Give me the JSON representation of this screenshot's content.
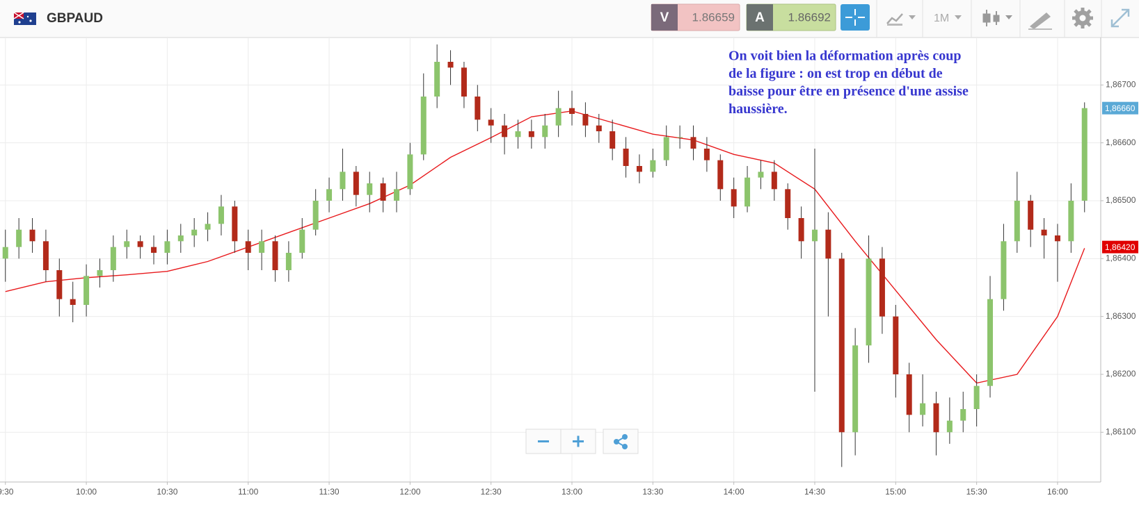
{
  "header": {
    "symbol": "GBPAUD",
    "sell_label": "V",
    "sell_price": "1.86659",
    "buy_label": "A",
    "buy_price": "1.86692",
    "interval": "1M"
  },
  "chart_data": {
    "type": "candlestick",
    "xlim": [
      "9:28",
      "16:16"
    ],
    "xticks": [
      "9:30",
      "10:00",
      "10:30",
      "11:00",
      "11:30",
      "12:00",
      "12:30",
      "13:00",
      "13:30",
      "14:00",
      "14:30",
      "15:00",
      "15:30",
      "16:00"
    ],
    "ylim": [
      1.86014,
      1.86782
    ],
    "yticks": [
      {
        "value": 1.861,
        "label": "1,86100"
      },
      {
        "value": 1.862,
        "label": "1,86200"
      },
      {
        "value": 1.863,
        "label": "1,86300"
      },
      {
        "value": 1.864,
        "label": "1,86400"
      },
      {
        "value": 1.865,
        "label": "1,86500"
      },
      {
        "value": 1.866,
        "label": "1,86600"
      },
      {
        "value": 1.867,
        "label": "1,86700"
      }
    ],
    "grid": true,
    "up_color": "#8cc46c",
    "down_color": "#b22a1a",
    "wick_color": "#333333",
    "x": [
      "9:30",
      "9:35",
      "9:40",
      "9:45",
      "9:50",
      "9:55",
      "10:00",
      "10:05",
      "10:10",
      "10:15",
      "10:20",
      "10:25",
      "10:30",
      "10:35",
      "10:40",
      "10:45",
      "10:50",
      "10:55",
      "11:00",
      "11:05",
      "11:10",
      "11:15",
      "11:20",
      "11:25",
      "11:30",
      "11:35",
      "11:40",
      "11:45",
      "11:50",
      "11:55",
      "12:00",
      "12:05",
      "12:10",
      "12:15",
      "12:20",
      "12:25",
      "12:30",
      "12:35",
      "12:40",
      "12:45",
      "12:50",
      "12:55",
      "13:00",
      "13:05",
      "13:10",
      "13:15",
      "13:20",
      "13:25",
      "13:30",
      "13:35",
      "13:40",
      "13:45",
      "13:50",
      "13:55",
      "14:00",
      "14:05",
      "14:10",
      "14:15",
      "14:20",
      "14:25",
      "14:30",
      "14:35",
      "14:40",
      "14:45",
      "14:50",
      "14:55",
      "15:00",
      "15:05",
      "15:10",
      "15:15",
      "15:20",
      "15:25",
      "15:30",
      "15:35",
      "15:40",
      "15:45",
      "15:50",
      "15:55",
      "16:00",
      "16:05",
      "16:10"
    ],
    "open": [
      1.864,
      1.8642,
      1.8645,
      1.8643,
      1.8638,
      1.8633,
      1.8632,
      1.8637,
      1.8638,
      1.8642,
      1.8643,
      1.8642,
      1.8641,
      1.8643,
      1.8644,
      1.8645,
      1.8646,
      1.8649,
      1.8643,
      1.8641,
      1.8643,
      1.8638,
      1.8641,
      1.8645,
      1.865,
      1.8652,
      1.8655,
      1.8651,
      1.8653,
      1.865,
      1.8652,
      1.8658,
      1.8668,
      1.8674,
      1.8673,
      1.8668,
      1.8664,
      1.8663,
      1.8661,
      1.8662,
      1.8661,
      1.8663,
      1.8666,
      1.8665,
      1.8663,
      1.8662,
      1.8659,
      1.8656,
      1.8655,
      1.8657,
      1.8661,
      1.8661,
      1.8659,
      1.8657,
      1.8652,
      1.8649,
      1.8654,
      1.8655,
      1.8652,
      1.8647,
      1.8643,
      1.8645,
      1.864,
      1.861,
      1.8625,
      1.864,
      1.863,
      1.862,
      1.8613,
      1.8615,
      1.861,
      1.8612,
      1.8614,
      1.8618,
      1.8633,
      1.8643,
      1.865,
      1.8645,
      1.8644,
      1.8643,
      1.865
    ],
    "high": [
      1.8645,
      1.8647,
      1.8647,
      1.8645,
      1.864,
      1.8636,
      1.8639,
      1.864,
      1.8644,
      1.8645,
      1.8644,
      1.8644,
      1.8645,
      1.8646,
      1.8647,
      1.8648,
      1.8651,
      1.865,
      1.8645,
      1.8645,
      1.8644,
      1.8643,
      1.8647,
      1.8652,
      1.8654,
      1.8659,
      1.8656,
      1.8655,
      1.8654,
      1.8655,
      1.866,
      1.8672,
      1.8677,
      1.8676,
      1.8674,
      1.867,
      1.8666,
      1.8665,
      1.8664,
      1.8664,
      1.8665,
      1.8669,
      1.8669,
      1.8667,
      1.8665,
      1.8664,
      1.8661,
      1.8658,
      1.8659,
      1.8663,
      1.8663,
      1.8663,
      1.8661,
      1.8658,
      1.8654,
      1.8656,
      1.8657,
      1.8657,
      1.8653,
      1.8649,
      1.8659,
      1.8648,
      1.8641,
      1.8628,
      1.8644,
      1.8642,
      1.8632,
      1.8622,
      1.862,
      1.8617,
      1.8616,
      1.8617,
      1.862,
      1.8637,
      1.8646,
      1.8655,
      1.8651,
      1.8647,
      1.8646,
      1.8653,
      1.8667
    ],
    "low": [
      1.8636,
      1.864,
      1.8641,
      1.8636,
      1.863,
      1.8629,
      1.863,
      1.8635,
      1.8636,
      1.864,
      1.864,
      1.8639,
      1.8639,
      1.8641,
      1.8642,
      1.8643,
      1.8644,
      1.8641,
      1.8638,
      1.8638,
      1.8636,
      1.8636,
      1.864,
      1.8644,
      1.8648,
      1.865,
      1.8649,
      1.8648,
      1.8648,
      1.8648,
      1.8651,
      1.8657,
      1.8666,
      1.867,
      1.8666,
      1.8662,
      1.866,
      1.8658,
      1.8659,
      1.8659,
      1.8659,
      1.8661,
      1.8663,
      1.8661,
      1.866,
      1.8657,
      1.8654,
      1.8653,
      1.8654,
      1.8656,
      1.8659,
      1.8657,
      1.8655,
      1.865,
      1.8647,
      1.8648,
      1.8652,
      1.865,
      1.8645,
      1.864,
      1.8617,
      1.863,
      1.8604,
      1.8606,
      1.8622,
      1.8627,
      1.8616,
      1.861,
      1.8611,
      1.8606,
      1.8608,
      1.861,
      1.8611,
      1.8616,
      1.8631,
      1.8641,
      1.8642,
      1.864,
      1.8636,
      1.8641,
      1.8648
    ],
    "close": [
      1.8642,
      1.8645,
      1.8643,
      1.8638,
      1.8633,
      1.8632,
      1.8637,
      1.8638,
      1.8642,
      1.8643,
      1.8642,
      1.8641,
      1.8643,
      1.8644,
      1.8645,
      1.8646,
      1.8649,
      1.8643,
      1.8641,
      1.8643,
      1.8638,
      1.8641,
      1.8645,
      1.865,
      1.8652,
      1.8655,
      1.8651,
      1.8653,
      1.865,
      1.8652,
      1.8658,
      1.8668,
      1.8674,
      1.8673,
      1.8668,
      1.8664,
      1.8663,
      1.8661,
      1.8662,
      1.8661,
      1.8663,
      1.8666,
      1.8665,
      1.8663,
      1.8662,
      1.8659,
      1.8656,
      1.8655,
      1.8657,
      1.8661,
      1.8661,
      1.8659,
      1.8657,
      1.8652,
      1.8649,
      1.8654,
      1.8655,
      1.8652,
      1.8647,
      1.8643,
      1.8645,
      1.864,
      1.861,
      1.8625,
      1.864,
      1.863,
      1.862,
      1.8613,
      1.8615,
      1.861,
      1.8612,
      1.8614,
      1.8618,
      1.8633,
      1.8643,
      1.865,
      1.8645,
      1.8644,
      1.8643,
      1.865,
      1.8666
    ],
    "moving_average": {
      "color": "#e8191c",
      "x": [
        "9:30",
        "9:45",
        "10:00",
        "10:15",
        "10:30",
        "10:45",
        "11:00",
        "11:15",
        "11:30",
        "11:45",
        "12:00",
        "12:15",
        "12:30",
        "12:45",
        "13:00",
        "13:15",
        "13:30",
        "13:45",
        "14:00",
        "14:15",
        "14:30",
        "14:45",
        "15:00",
        "15:15",
        "15:30",
        "15:45",
        "16:00",
        "16:10"
      ],
      "values": [
        1.86343,
        1.8636,
        1.86367,
        1.86372,
        1.86378,
        1.86395,
        1.8642,
        1.86445,
        1.8647,
        1.86495,
        1.86527,
        1.86575,
        1.86609,
        1.86645,
        1.86655,
        1.86635,
        1.86615,
        1.86605,
        1.8658,
        1.86565,
        1.8652,
        1.8643,
        1.86345,
        1.8626,
        1.86185,
        1.862,
        1.863,
        1.86418
      ]
    },
    "price_markers": [
      {
        "value": 1.8666,
        "label": "1,86660",
        "color": "#5aa9d6"
      },
      {
        "value": 1.8642,
        "label": "1,86420",
        "color": "#e00000"
      }
    ],
    "annotation": [
      "On voit bien la déformation après coup",
      "de la figure : on est trop en début de",
      "baisse pour être en présence d'une assise",
      "haussière."
    ]
  }
}
